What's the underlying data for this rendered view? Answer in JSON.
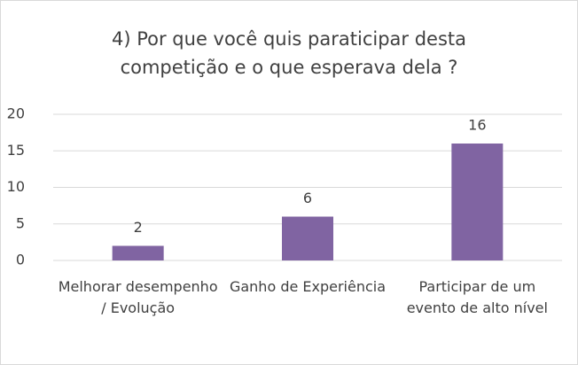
{
  "chart_data": {
    "type": "bar",
    "title": "4) Por que você quis paraticipar desta competição e o que esperava dela ?",
    "categories": [
      "Melhorar desempenho / Evolução",
      "Ganho de Experiência",
      "Participar de um evento de alto nível"
    ],
    "values": [
      2,
      6,
      16
    ],
    "color": "#8064a2",
    "ylim": [
      0,
      20
    ],
    "yticks": [
      0,
      5,
      10,
      15,
      20
    ],
    "grid": true
  }
}
